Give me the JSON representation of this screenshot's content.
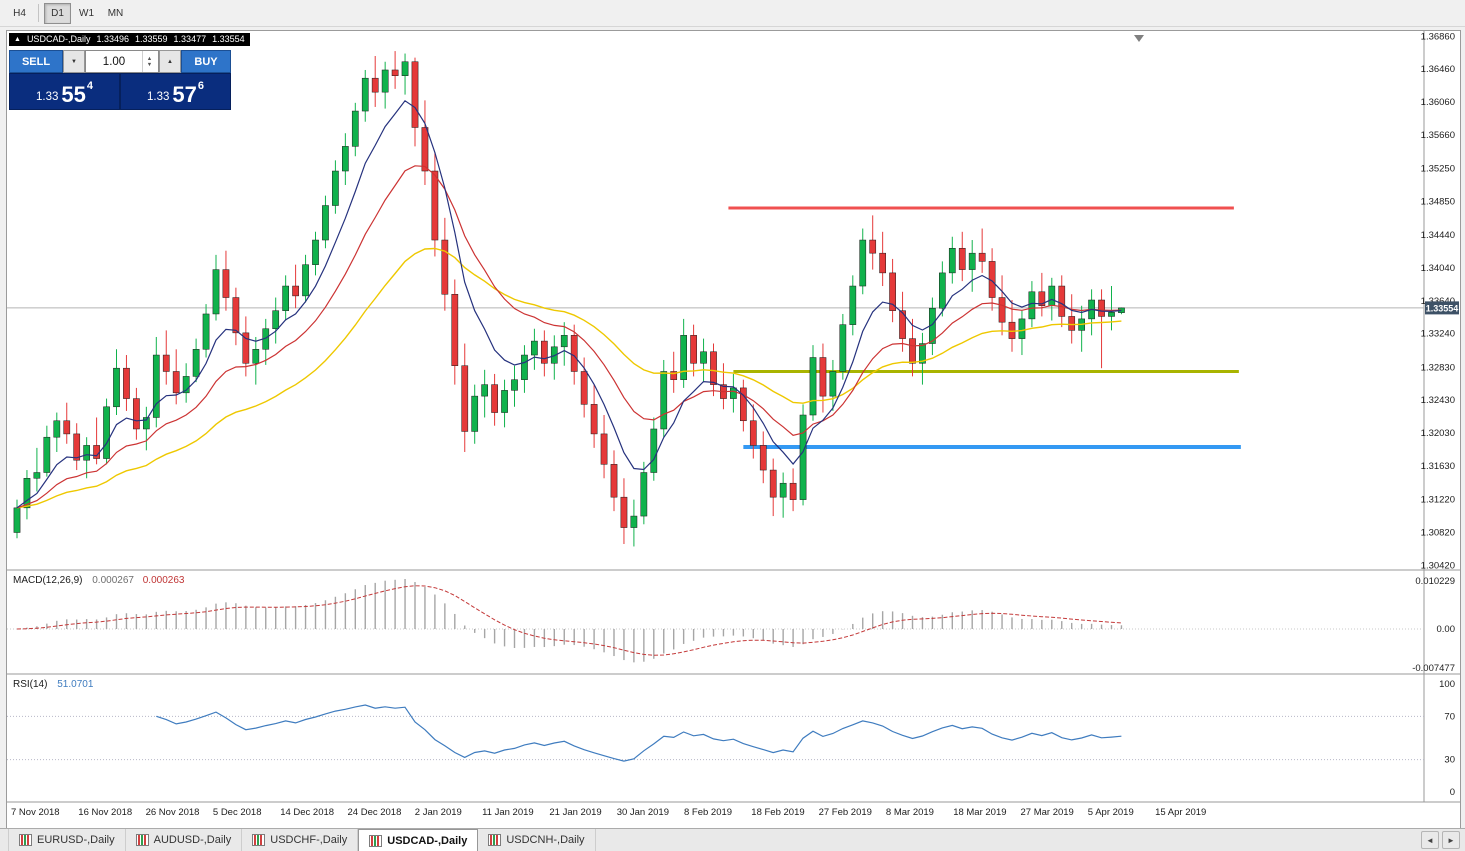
{
  "toolbar": {
    "periods": [
      {
        "label": "H4",
        "active": false
      },
      {
        "label": "D1",
        "active": true
      },
      {
        "label": "W1",
        "active": false
      },
      {
        "label": "MN",
        "active": false
      }
    ]
  },
  "chart_header": {
    "symbol": "USDCAD-,Daily",
    "open": "1.33496",
    "high": "1.33559",
    "low": "1.33477",
    "close": "1.33554"
  },
  "trade_panel": {
    "sell_label": "SELL",
    "buy_label": "BUY",
    "volume": "1.00",
    "sell_price_small": "1.33",
    "sell_price_big": "55",
    "sell_price_sup": "4",
    "buy_price_small": "1.33",
    "buy_price_big": "57",
    "buy_price_sup": "6"
  },
  "price_axis_labels": [
    "1.36860",
    "1.36460",
    "1.36060",
    "1.35660",
    "1.35250",
    "1.34850",
    "1.34440",
    "1.34040",
    "1.33640",
    "1.33240",
    "1.32830",
    "1.32430",
    "1.32030",
    "1.31630",
    "1.31220",
    "1.30820",
    "1.30420"
  ],
  "current_price": "1.33554",
  "macd_panel": {
    "label": "MACD(12,26,9)",
    "value_main": "0.000267",
    "value_signal": "0.000263",
    "axis_top": "0.010229",
    "axis_zero": "0.00",
    "axis_bottom": "-0.007477"
  },
  "rsi_panel": {
    "label": "RSI(14)",
    "value": "51.0701",
    "axis": [
      "100",
      "70",
      "30",
      "0"
    ],
    "levels": [
      70,
      30
    ]
  },
  "time_axis_labels": [
    "7 Nov 2018",
    "16 Nov 2018",
    "26 Nov 2018",
    "5 Dec 2018",
    "14 Dec 2018",
    "24 Dec 2018",
    "2 Jan 2019",
    "11 Jan 2019",
    "21 Jan 2019",
    "30 Jan 2019",
    "8 Feb 2019",
    "18 Feb 2019",
    "27 Feb 2019",
    "8 Mar 2019",
    "18 Mar 2019",
    "27 Mar 2019",
    "5 Apr 2019",
    "15 Apr 2019"
  ],
  "tabs": {
    "items": [
      {
        "label": "EURUSD-,Daily",
        "active": false
      },
      {
        "label": "AUDUSD-,Daily",
        "active": false
      },
      {
        "label": "USDCHF-,Daily",
        "active": false
      },
      {
        "label": "USDCAD-,Daily",
        "active": true
      },
      {
        "label": "USDCNH-,Daily",
        "active": false
      }
    ]
  },
  "chart_data": {
    "type": "candlestick",
    "symbol": "USDCAD",
    "timeframe": "Daily",
    "price_range": [
      1.304,
      1.369
    ],
    "colors": {
      "up": "#10b24c",
      "down": "#e53939",
      "bid_line": "#b5b5b5"
    },
    "overlays": {
      "ma_fast": {
        "type": "EMA",
        "period": 7,
        "color": "#26327e"
      },
      "ma_mid": {
        "type": "EMA",
        "period": 16,
        "color": "#cc3333"
      },
      "ma_slow": {
        "type": "EMA",
        "period": 34,
        "color": "#eec800"
      }
    },
    "hlines": [
      {
        "price": 1.3477,
        "color": "#f05050",
        "width": 3,
        "i0": 71.5,
        "i1": 122.3
      },
      {
        "price": 1.3278,
        "color": "#a9b400",
        "width": 3,
        "i0": 72.0,
        "i1": 122.8
      },
      {
        "price": 1.3186,
        "color": "#3399f3",
        "width": 4,
        "i0": 73.0,
        "i1": 123.0
      }
    ],
    "candles": [
      [
        1.3082,
        1.3122,
        1.3075,
        1.3112
      ],
      [
        1.3112,
        1.3158,
        1.3098,
        1.3148
      ],
      [
        1.3148,
        1.3185,
        1.3132,
        1.3155
      ],
      [
        1.3155,
        1.3212,
        1.315,
        1.3198
      ],
      [
        1.3198,
        1.3228,
        1.318,
        1.3218
      ],
      [
        1.3218,
        1.324,
        1.319,
        1.3202
      ],
      [
        1.3202,
        1.3215,
        1.3158,
        1.317
      ],
      [
        1.317,
        1.3198,
        1.3148,
        1.3188
      ],
      [
        1.3188,
        1.3222,
        1.3165,
        1.3172
      ],
      [
        1.3172,
        1.3245,
        1.3165,
        1.3235
      ],
      [
        1.3235,
        1.3305,
        1.3225,
        1.3282
      ],
      [
        1.3282,
        1.3298,
        1.323,
        1.3245
      ],
      [
        1.3245,
        1.3258,
        1.3195,
        1.3208
      ],
      [
        1.3208,
        1.3235,
        1.3182,
        1.3222
      ],
      [
        1.3222,
        1.332,
        1.321,
        1.3298
      ],
      [
        1.3298,
        1.3328,
        1.3262,
        1.3278
      ],
      [
        1.3278,
        1.3305,
        1.3238,
        1.3252
      ],
      [
        1.3252,
        1.3288,
        1.324,
        1.3272
      ],
      [
        1.3272,
        1.3318,
        1.3265,
        1.3305
      ],
      [
        1.3305,
        1.336,
        1.3295,
        1.3348
      ],
      [
        1.3348,
        1.342,
        1.334,
        1.3402
      ],
      [
        1.3402,
        1.3425,
        1.3352,
        1.3368
      ],
      [
        1.3368,
        1.338,
        1.331,
        1.3325
      ],
      [
        1.3325,
        1.3345,
        1.3272,
        1.3288
      ],
      [
        1.3288,
        1.332,
        1.3262,
        1.3305
      ],
      [
        1.3305,
        1.3342,
        1.3286,
        1.333
      ],
      [
        1.333,
        1.3368,
        1.3312,
        1.3352
      ],
      [
        1.3352,
        1.3395,
        1.334,
        1.3382
      ],
      [
        1.3382,
        1.3408,
        1.3355,
        1.337
      ],
      [
        1.337,
        1.342,
        1.3362,
        1.3408
      ],
      [
        1.3408,
        1.3448,
        1.3395,
        1.3438
      ],
      [
        1.3438,
        1.3492,
        1.3428,
        1.348
      ],
      [
        1.348,
        1.3535,
        1.347,
        1.3522
      ],
      [
        1.3522,
        1.3568,
        1.3505,
        1.3552
      ],
      [
        1.3552,
        1.3605,
        1.354,
        1.3595
      ],
      [
        1.3595,
        1.3645,
        1.3582,
        1.3635
      ],
      [
        1.3635,
        1.3662,
        1.36,
        1.3618
      ],
      [
        1.3618,
        1.3655,
        1.3598,
        1.3645
      ],
      [
        1.3645,
        1.3668,
        1.3622,
        1.3638
      ],
      [
        1.3638,
        1.3665,
        1.3615,
        1.3655
      ],
      [
        1.3655,
        1.366,
        1.3552,
        1.3575
      ],
      [
        1.3575,
        1.3608,
        1.3505,
        1.3522
      ],
      [
        1.3522,
        1.3545,
        1.3418,
        1.3438
      ],
      [
        1.3438,
        1.3465,
        1.3352,
        1.3372
      ],
      [
        1.3372,
        1.339,
        1.3262,
        1.3285
      ],
      [
        1.3285,
        1.3312,
        1.318,
        1.3205
      ],
      [
        1.3205,
        1.3262,
        1.319,
        1.3248
      ],
      [
        1.3248,
        1.328,
        1.3222,
        1.3262
      ],
      [
        1.3262,
        1.3275,
        1.3212,
        1.3228
      ],
      [
        1.3228,
        1.3268,
        1.321,
        1.3255
      ],
      [
        1.3255,
        1.3285,
        1.3235,
        1.3268
      ],
      [
        1.3268,
        1.331,
        1.3252,
        1.3298
      ],
      [
        1.3298,
        1.333,
        1.328,
        1.3315
      ],
      [
        1.3315,
        1.3328,
        1.3272,
        1.3288
      ],
      [
        1.3288,
        1.3322,
        1.3268,
        1.3308
      ],
      [
        1.3308,
        1.3338,
        1.3285,
        1.3322
      ],
      [
        1.3322,
        1.3335,
        1.3262,
        1.3278
      ],
      [
        1.3278,
        1.3295,
        1.3222,
        1.3238
      ],
      [
        1.3238,
        1.3262,
        1.3185,
        1.3202
      ],
      [
        1.3202,
        1.3225,
        1.3148,
        1.3165
      ],
      [
        1.3165,
        1.3182,
        1.3108,
        1.3125
      ],
      [
        1.3125,
        1.3148,
        1.3068,
        1.3088
      ],
      [
        1.3088,
        1.3122,
        1.3065,
        1.3102
      ],
      [
        1.3102,
        1.3168,
        1.3092,
        1.3155
      ],
      [
        1.3155,
        1.3222,
        1.3145,
        1.3208
      ],
      [
        1.3208,
        1.3292,
        1.3198,
        1.3278
      ],
      [
        1.3278,
        1.3302,
        1.3252,
        1.3268
      ],
      [
        1.3268,
        1.3342,
        1.3258,
        1.3322
      ],
      [
        1.3322,
        1.3335,
        1.3272,
        1.3288
      ],
      [
        1.3288,
        1.3318,
        1.3265,
        1.3302
      ],
      [
        1.3302,
        1.3312,
        1.3248,
        1.3262
      ],
      [
        1.3262,
        1.3288,
        1.3232,
        1.3245
      ],
      [
        1.3245,
        1.3275,
        1.3228,
        1.3258
      ],
      [
        1.3258,
        1.3268,
        1.3205,
        1.3218
      ],
      [
        1.3218,
        1.3238,
        1.3172,
        1.3188
      ],
      [
        1.3188,
        1.3205,
        1.3142,
        1.3158
      ],
      [
        1.3158,
        1.3172,
        1.3102,
        1.3125
      ],
      [
        1.3125,
        1.3155,
        1.31,
        1.3142
      ],
      [
        1.3142,
        1.316,
        1.3108,
        1.3122
      ],
      [
        1.3122,
        1.3238,
        1.3115,
        1.3225
      ],
      [
        1.3225,
        1.331,
        1.3218,
        1.3295
      ],
      [
        1.3295,
        1.3312,
        1.3228,
        1.3248
      ],
      [
        1.3248,
        1.3292,
        1.323,
        1.3278
      ],
      [
        1.3278,
        1.3348,
        1.3268,
        1.3335
      ],
      [
        1.3335,
        1.3395,
        1.3322,
        1.3382
      ],
      [
        1.3382,
        1.3452,
        1.3372,
        1.3438
      ],
      [
        1.3438,
        1.3468,
        1.3402,
        1.3422
      ],
      [
        1.3422,
        1.3448,
        1.3382,
        1.3398
      ],
      [
        1.3398,
        1.3415,
        1.3338,
        1.3352
      ],
      [
        1.3352,
        1.3375,
        1.3302,
        1.3318
      ],
      [
        1.3318,
        1.3342,
        1.3272,
        1.3288
      ],
      [
        1.3288,
        1.3325,
        1.3262,
        1.3312
      ],
      [
        1.3312,
        1.3368,
        1.3298,
        1.3355
      ],
      [
        1.3355,
        1.3412,
        1.3345,
        1.3398
      ],
      [
        1.3398,
        1.3442,
        1.3385,
        1.3428
      ],
      [
        1.3428,
        1.3448,
        1.3388,
        1.3402
      ],
      [
        1.3402,
        1.3438,
        1.3375,
        1.3422
      ],
      [
        1.3422,
        1.3452,
        1.3398,
        1.3412
      ],
      [
        1.3412,
        1.3428,
        1.3352,
        1.3368
      ],
      [
        1.3368,
        1.3395,
        1.3322,
        1.3338
      ],
      [
        1.3338,
        1.3365,
        1.3302,
        1.3318
      ],
      [
        1.3318,
        1.3352,
        1.3298,
        1.3342
      ],
      [
        1.3342,
        1.3388,
        1.3332,
        1.3375
      ],
      [
        1.3375,
        1.3398,
        1.3345,
        1.3358
      ],
      [
        1.3358,
        1.3392,
        1.334,
        1.3382
      ],
      [
        1.3382,
        1.3395,
        1.3332,
        1.3345
      ],
      [
        1.3345,
        1.3372,
        1.3312,
        1.3328
      ],
      [
        1.3328,
        1.3358,
        1.3302,
        1.3342
      ],
      [
        1.3342,
        1.3378,
        1.3322,
        1.3365
      ],
      [
        1.3365,
        1.3378,
        1.3282,
        1.3345
      ],
      [
        1.3345,
        1.3382,
        1.3328,
        1.335
      ],
      [
        1.33496,
        1.33559,
        1.33477,
        1.33554
      ]
    ]
  }
}
